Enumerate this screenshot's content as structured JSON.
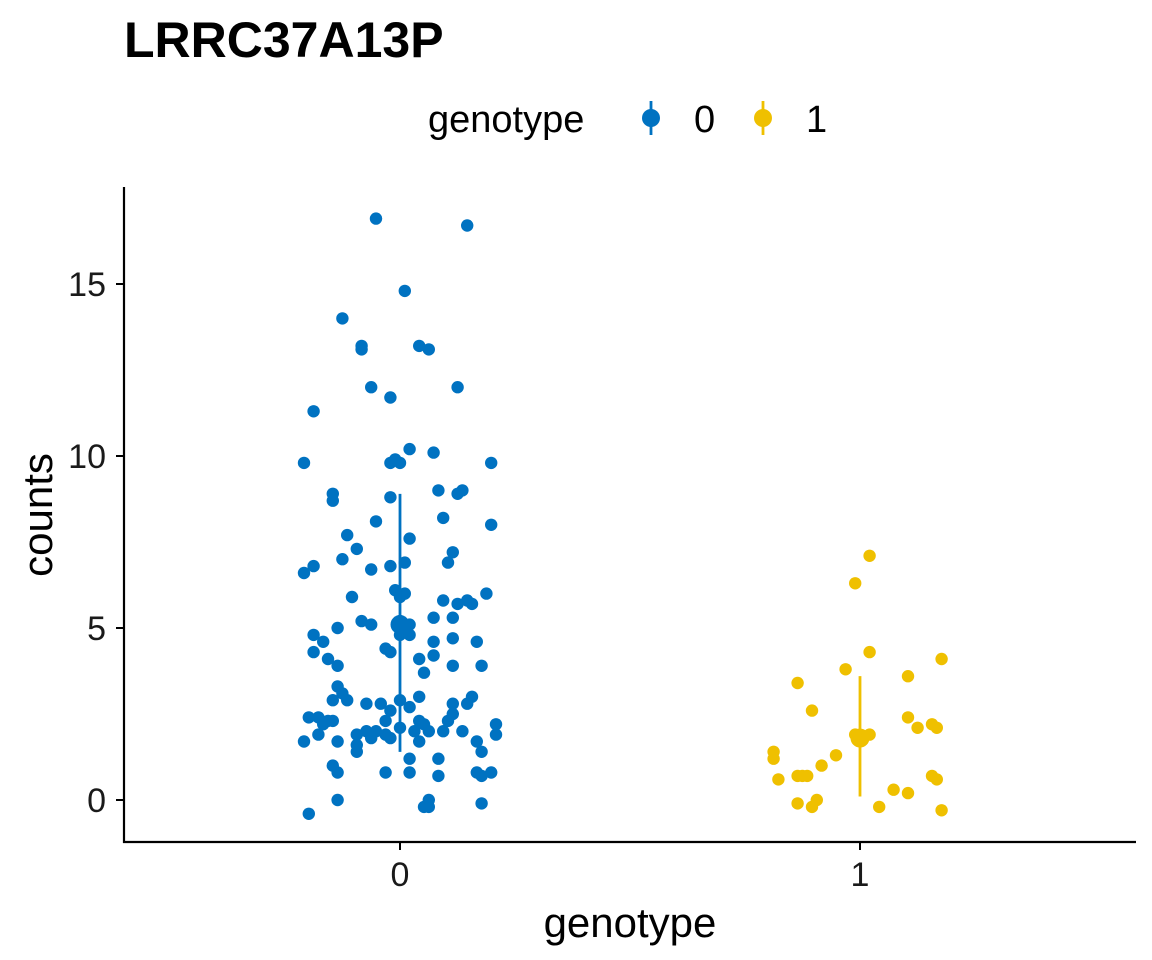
{
  "chart_data": {
    "type": "scatter",
    "title": "LRRC37A13P",
    "xlabel": "genotype",
    "ylabel": "counts",
    "legend": {
      "title": "genotype",
      "position": "top",
      "entries": [
        "0",
        "1"
      ]
    },
    "x_categories": [
      "0",
      "1"
    ],
    "y_ticks": [
      0,
      5,
      10,
      15
    ],
    "y_tick_labels": [
      "0",
      "5",
      "10",
      "15"
    ],
    "ylim": [
      -1.2,
      17.7
    ],
    "grid": false,
    "series": [
      {
        "name": "0",
        "color": "#0072C1",
        "category": "0",
        "summary": {
          "mean": 5.1,
          "lower": 1.4,
          "upper": 8.9
        },
        "points": [
          [
            -0.05,
            16.9
          ],
          [
            0.14,
            16.7
          ],
          [
            0.01,
            14.8
          ],
          [
            -0.12,
            14.0
          ],
          [
            -0.08,
            13.2
          ],
          [
            -0.08,
            13.1
          ],
          [
            0.04,
            13.2
          ],
          [
            0.06,
            13.1
          ],
          [
            -0.06,
            12.0
          ],
          [
            0.12,
            12.0
          ],
          [
            -0.02,
            11.7
          ],
          [
            -0.18,
            11.3
          ],
          [
            0.02,
            10.2
          ],
          [
            0.07,
            10.1
          ],
          [
            -0.2,
            9.8
          ],
          [
            -0.02,
            9.8
          ],
          [
            -0.01,
            9.9
          ],
          [
            0.0,
            9.8
          ],
          [
            0.19,
            9.8
          ],
          [
            -0.14,
            8.9
          ],
          [
            -0.02,
            8.8
          ],
          [
            0.08,
            9.0
          ],
          [
            0.13,
            9.0
          ],
          [
            0.12,
            8.9
          ],
          [
            -0.14,
            8.7
          ],
          [
            0.09,
            8.2
          ],
          [
            -0.11,
            7.7
          ],
          [
            -0.05,
            8.1
          ],
          [
            0.19,
            8.0
          ],
          [
            0.02,
            7.6
          ],
          [
            -0.09,
            7.3
          ],
          [
            0.11,
            7.2
          ],
          [
            -0.2,
            6.6
          ],
          [
            -0.18,
            6.8
          ],
          [
            -0.02,
            6.8
          ],
          [
            0.01,
            6.9
          ],
          [
            -0.06,
            6.7
          ],
          [
            0.1,
            6.9
          ],
          [
            -0.12,
            7.0
          ],
          [
            -0.01,
            6.1
          ],
          [
            0.01,
            6.0
          ],
          [
            0.0,
            5.9
          ],
          [
            0.18,
            6.0
          ],
          [
            -0.1,
            5.9
          ],
          [
            0.09,
            5.8
          ],
          [
            0.12,
            5.7
          ],
          [
            0.14,
            5.8
          ],
          [
            0.15,
            5.7
          ],
          [
            0.07,
            5.3
          ],
          [
            0.11,
            5.3
          ],
          [
            -0.08,
            5.2
          ],
          [
            -0.06,
            5.1
          ],
          [
            0.0,
            5.2
          ],
          [
            0.02,
            5.1
          ],
          [
            -0.13,
            5.0
          ],
          [
            0.0,
            4.8
          ],
          [
            0.01,
            4.9
          ],
          [
            0.02,
            4.8
          ],
          [
            0.11,
            4.7
          ],
          [
            -0.18,
            4.8
          ],
          [
            -0.16,
            4.6
          ],
          [
            0.07,
            4.6
          ],
          [
            0.16,
            4.6
          ],
          [
            -0.03,
            4.4
          ],
          [
            -0.02,
            4.3
          ],
          [
            0.07,
            4.2
          ],
          [
            -0.18,
            4.3
          ],
          [
            -0.15,
            4.1
          ],
          [
            0.04,
            4.1
          ],
          [
            -0.13,
            3.9
          ],
          [
            0.11,
            3.9
          ],
          [
            0.17,
            3.9
          ],
          [
            0.05,
            3.7
          ],
          [
            -0.13,
            3.3
          ],
          [
            -0.12,
            3.1
          ],
          [
            -0.14,
            2.9
          ],
          [
            -0.11,
            2.9
          ],
          [
            -0.07,
            2.8
          ],
          [
            -0.04,
            2.8
          ],
          [
            0.0,
            2.9
          ],
          [
            0.04,
            3.0
          ],
          [
            0.15,
            3.0
          ],
          [
            0.02,
            2.7
          ],
          [
            0.11,
            2.8
          ],
          [
            0.14,
            2.8
          ],
          [
            -0.02,
            2.6
          ],
          [
            0.11,
            2.5
          ],
          [
            -0.19,
            2.4
          ],
          [
            -0.17,
            2.4
          ],
          [
            -0.15,
            2.3
          ],
          [
            -0.14,
            2.3
          ],
          [
            -0.03,
            2.3
          ],
          [
            0.04,
            2.3
          ],
          [
            0.05,
            2.2
          ],
          [
            0.1,
            2.3
          ],
          [
            0.2,
            2.2
          ],
          [
            -0.16,
            2.2
          ],
          [
            -0.07,
            2.0
          ],
          [
            -0.05,
            2.0
          ],
          [
            0.0,
            2.1
          ],
          [
            0.03,
            2.0
          ],
          [
            0.06,
            2.0
          ],
          [
            0.09,
            2.0
          ],
          [
            0.13,
            2.0
          ],
          [
            -0.09,
            1.9
          ],
          [
            -0.06,
            1.8
          ],
          [
            -0.03,
            1.9
          ],
          [
            -0.02,
            1.8
          ],
          [
            0.04,
            1.7
          ],
          [
            -0.2,
            1.7
          ],
          [
            -0.17,
            1.9
          ],
          [
            -0.13,
            1.7
          ],
          [
            0.16,
            1.7
          ],
          [
            0.2,
            1.9
          ],
          [
            -0.09,
            1.6
          ],
          [
            -0.09,
            1.4
          ],
          [
            0.17,
            1.4
          ],
          [
            0.02,
            1.2
          ],
          [
            0.08,
            1.2
          ],
          [
            -0.14,
            1.0
          ],
          [
            0.16,
            0.8
          ],
          [
            0.19,
            0.8
          ],
          [
            -0.13,
            0.8
          ],
          [
            -0.03,
            0.8
          ],
          [
            0.02,
            0.8
          ],
          [
            0.08,
            0.7
          ],
          [
            0.17,
            0.7
          ],
          [
            -0.13,
            0.0
          ],
          [
            0.06,
            0.0
          ],
          [
            0.05,
            -0.2
          ],
          [
            0.06,
            -0.2
          ],
          [
            0.17,
            -0.1
          ],
          [
            -0.19,
            -0.4
          ]
        ]
      },
      {
        "name": "1",
        "color": "#EFC000",
        "category": "1",
        "summary": {
          "mean": 1.8,
          "lower": 0.1,
          "upper": 3.6
        },
        "points": [
          [
            0.02,
            7.1
          ],
          [
            -0.01,
            6.3
          ],
          [
            0.02,
            4.3
          ],
          [
            0.17,
            4.1
          ],
          [
            -0.03,
            3.8
          ],
          [
            0.1,
            3.6
          ],
          [
            -0.13,
            3.4
          ],
          [
            -0.1,
            2.6
          ],
          [
            0.1,
            2.4
          ],
          [
            0.15,
            2.2
          ],
          [
            0.12,
            2.1
          ],
          [
            0.16,
            2.1
          ],
          [
            -0.01,
            1.9
          ],
          [
            0.0,
            1.8
          ],
          [
            0.02,
            1.9
          ],
          [
            -0.18,
            1.4
          ],
          [
            -0.18,
            1.2
          ],
          [
            -0.05,
            1.3
          ],
          [
            -0.08,
            1.0
          ],
          [
            -0.12,
            0.7
          ],
          [
            -0.13,
            0.7
          ],
          [
            -0.11,
            0.7
          ],
          [
            -0.17,
            0.6
          ],
          [
            0.15,
            0.7
          ],
          [
            0.16,
            0.6
          ],
          [
            0.07,
            0.3
          ],
          [
            0.1,
            0.2
          ],
          [
            -0.09,
            0.0
          ],
          [
            -0.13,
            -0.1
          ],
          [
            -0.1,
            -0.2
          ],
          [
            0.04,
            -0.2
          ],
          [
            0.17,
            -0.3
          ]
        ]
      }
    ]
  }
}
